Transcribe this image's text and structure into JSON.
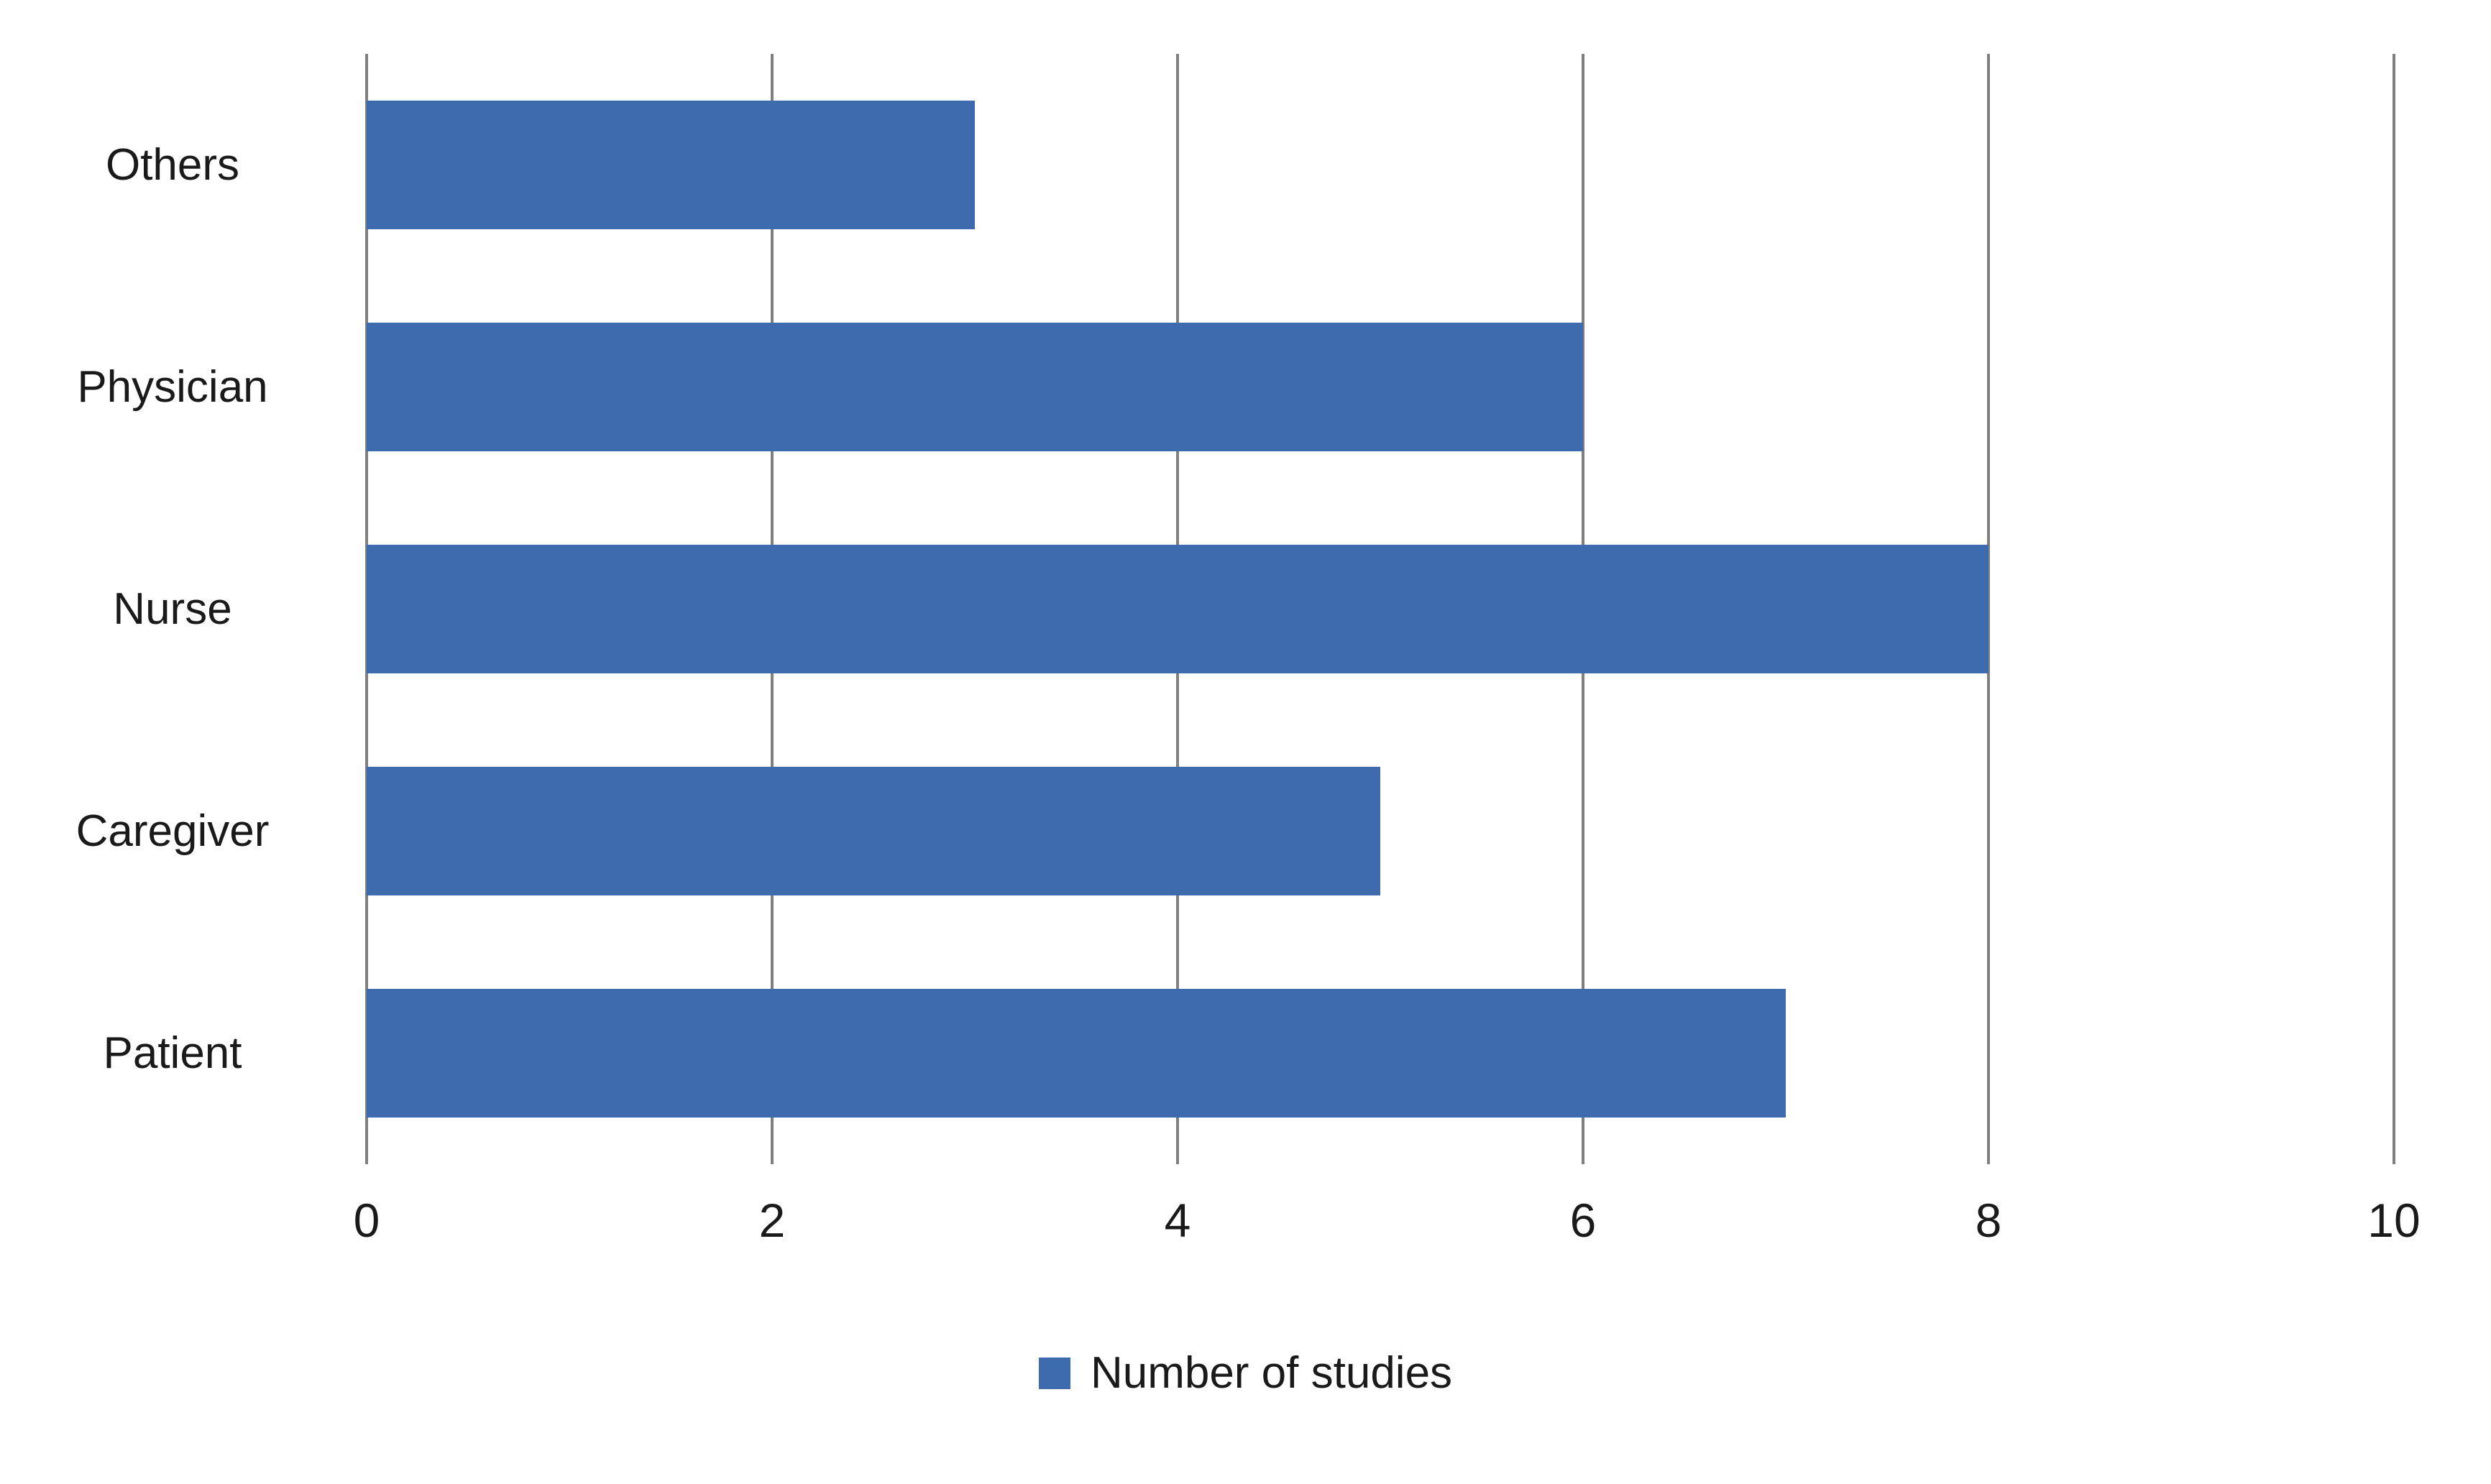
{
  "chart_data": {
    "type": "bar",
    "orientation": "horizontal",
    "categories": [
      "Others",
      "Physician",
      "Nurse",
      "Caregiver",
      "Patient"
    ],
    "values": [
      3,
      6,
      8,
      5,
      7
    ],
    "series_name": "Number of studies",
    "title": "",
    "xlabel": "",
    "ylabel": "",
    "xlim": [
      0,
      10
    ],
    "xticks": [
      0,
      2,
      4,
      6,
      8,
      10
    ],
    "grid": true,
    "legend_position": "bottom",
    "bar_color": "#3d6bae",
    "gridline_color": "#7f7f7f"
  },
  "legend": {
    "label": "Number of studies"
  }
}
